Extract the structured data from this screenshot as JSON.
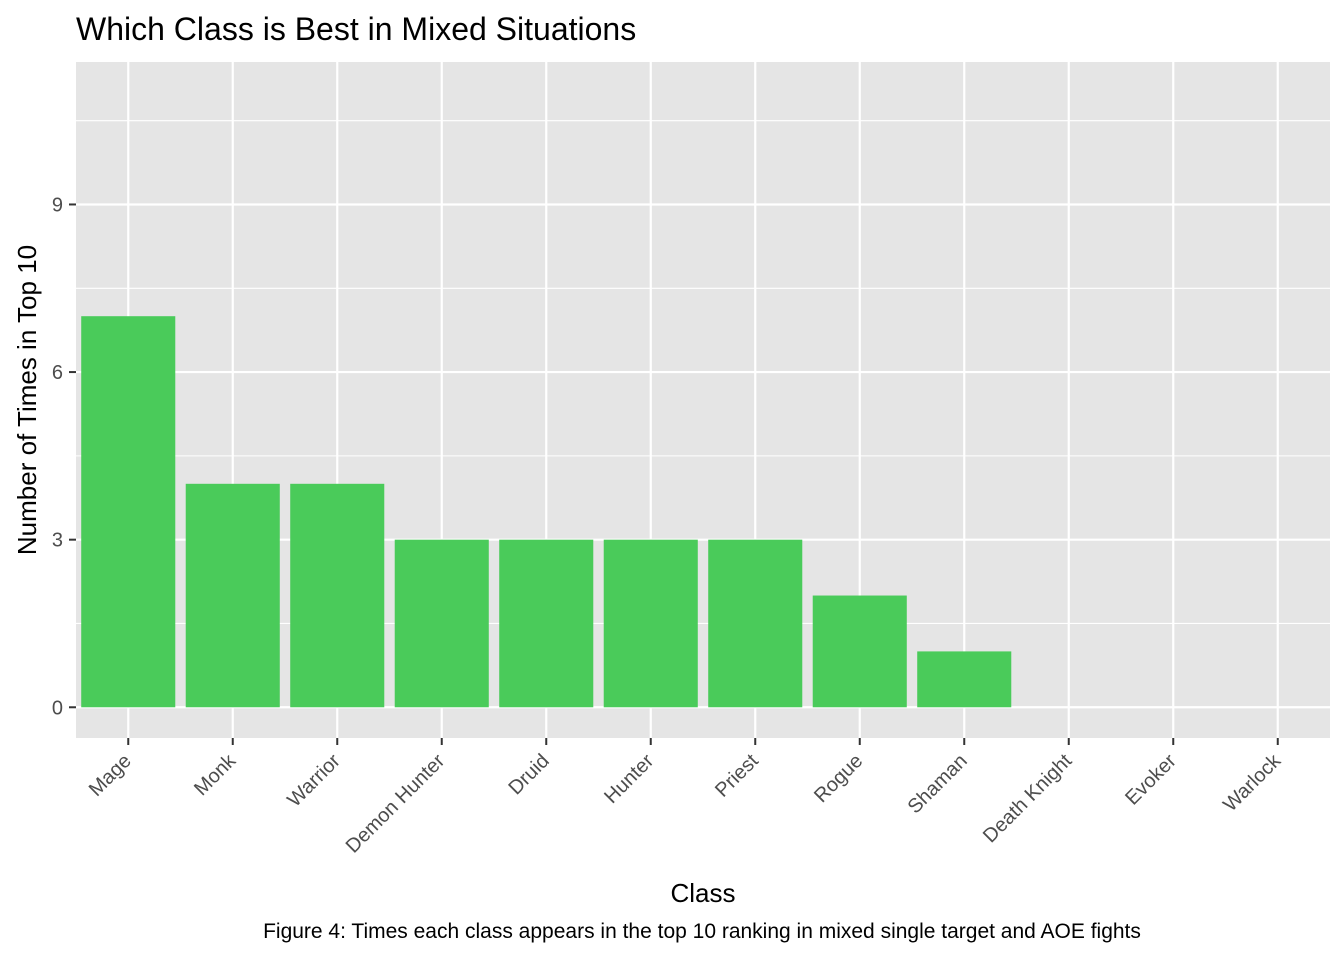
{
  "chart_data": {
    "type": "bar",
    "title": "Which Class is Best in Mixed Situations",
    "xlabel": "Class",
    "ylabel": "Number of Times in Top 10",
    "caption": "Figure 4: Times each class appears in the top 10 ranking in mixed single target and AOE fights",
    "categories": [
      "Mage",
      "Monk",
      "Warrior",
      "Demon Hunter",
      "Druid",
      "Hunter",
      "Priest",
      "Rogue",
      "Shaman",
      "Death Knight",
      "Evoker",
      "Warlock"
    ],
    "values": [
      7,
      4,
      4,
      3,
      3,
      3,
      3,
      2,
      1,
      0,
      0,
      0
    ],
    "ylim": [
      -0.55,
      11.55
    ],
    "yticks": [
      0,
      3,
      6,
      9
    ],
    "grid": true,
    "legend": "none",
    "colors": {
      "bar": "#4ACB5A",
      "panel": "#E5E5E5",
      "grid": "#FFFFFF",
      "axis_text": "#4D4D4D",
      "text": "#000000"
    }
  }
}
